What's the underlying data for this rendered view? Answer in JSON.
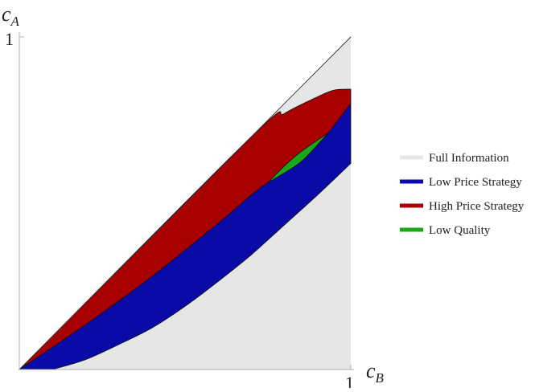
{
  "chart_data": {
    "type": "area",
    "xlabel": {
      "main": "c",
      "sub": "B"
    },
    "ylabel": {
      "main": "c",
      "sub": "A"
    },
    "xlim": [
      0,
      1
    ],
    "ylim": [
      0,
      1
    ],
    "x_ticks": [
      "1"
    ],
    "y_ticks": [
      "1"
    ],
    "grid": false,
    "legend_placement": "right",
    "reference_line": {
      "from": [
        0,
        0
      ],
      "to": [
        1,
        1
      ],
      "color": "#333333"
    },
    "series": [
      {
        "name": "Full Information",
        "color": "#e6e6e6",
        "region": {
          "upper": [
            [
              0,
              0
            ],
            [
              1,
              1
            ]
          ],
          "lower": [
            [
              0,
              0
            ],
            [
              1,
              0
            ]
          ]
        }
      },
      {
        "name": "Low Price Strategy",
        "color": "#0a0aa6",
        "region": {
          "upper": [
            [
              0,
              0
            ],
            [
              0.2,
              0.135
            ],
            [
              0.4,
              0.28
            ],
            [
              0.6,
              0.44
            ],
            [
              0.7,
              0.525
            ],
            [
              0.8,
              0.612
            ],
            [
              0.9,
              0.705
            ],
            [
              1,
              0.8
            ]
          ],
          "lower": [
            [
              0.1,
              0
            ],
            [
              0.2,
              0.03
            ],
            [
              0.3,
              0.075
            ],
            [
              0.4,
              0.125
            ],
            [
              0.5,
              0.19
            ],
            [
              0.6,
              0.265
            ],
            [
              0.7,
              0.345
            ],
            [
              0.8,
              0.435
            ],
            [
              0.9,
              0.525
            ],
            [
              1,
              0.62
            ]
          ]
        }
      },
      {
        "name": "High Price Strategy",
        "color": "#a80000",
        "region": {
          "upper": [
            [
              0,
              0
            ],
            [
              0.7,
              0.7
            ],
            [
              0.8,
              0.77
            ],
            [
              0.9,
              0.82
            ],
            [
              0.95,
              0.84
            ],
            [
              1,
              0.843
            ]
          ],
          "lower": [
            [
              0,
              0
            ],
            [
              0.2,
              0.135
            ],
            [
              0.4,
              0.28
            ],
            [
              0.6,
              0.44
            ],
            [
              0.7,
              0.525
            ],
            [
              0.75,
              0.562
            ],
            [
              0.85,
              0.625
            ],
            [
              0.93,
              0.71
            ],
            [
              1,
              0.8
            ]
          ]
        }
      },
      {
        "name": "Low Quality",
        "color": "#1aa81a",
        "region": {
          "upper": [
            [
              0.75,
              0.562
            ],
            [
              0.8,
              0.612
            ],
            [
              0.85,
              0.655
            ],
            [
              0.93,
              0.71
            ]
          ],
          "lower": [
            [
              0.75,
              0.562
            ],
            [
              0.85,
              0.625
            ],
            [
              0.93,
              0.71
            ]
          ]
        }
      }
    ]
  }
}
